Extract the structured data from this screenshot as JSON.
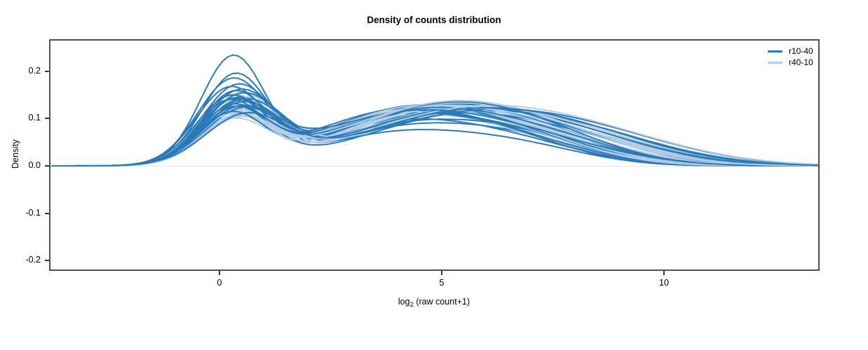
{
  "chart": {
    "title": "Density of counts distribution",
    "ylabel": "Density",
    "xlabel_prefix": "log",
    "xlabel_sub": "2",
    "xlabel_suffix": " (raw count+1)",
    "x_ticks": [
      {
        "value": 0,
        "label": "0"
      },
      {
        "value": 5,
        "label": "5"
      },
      {
        "value": 10,
        "label": "10"
      }
    ],
    "y_ticks": [
      {
        "value": 0.2,
        "label": "0.2"
      },
      {
        "value": 0.1,
        "label": "0.1"
      },
      {
        "value": 0.0,
        "label": "0.0"
      },
      {
        "value": -0.1,
        "label": "-0.1"
      },
      {
        "value": -0.2,
        "label": "-0.2"
      }
    ],
    "legend": [
      {
        "label": "r10-40",
        "color": "#2b7ab8"
      },
      {
        "label": "r40-10",
        "color": "#b3cde7"
      }
    ]
  },
  "chart_data": {
    "type": "line",
    "subtype": "overlaid-density-curves",
    "title": "Density of counts distribution",
    "xlabel": "log2 (raw count+1)",
    "ylabel": "Density",
    "xlim": [
      -3.8,
      13.47
    ],
    "ylim": [
      -0.219,
      0.265
    ],
    "x_tick_values": [
      0,
      5,
      10
    ],
    "y_tick_values": [
      -0.2,
      -0.1,
      0.0,
      0.1,
      0.2
    ],
    "grid": false,
    "zero_line": true,
    "zero_line_color": "#e7e7e7",
    "legend_position": "top-right-inside",
    "line_width": 2,
    "curve_model": "each curve = sum of 3 gaussian bumps; params per curve = [a1,m1,s1,a2,m2,s2,a3,m3,s3] giving density(x) = sum ai*exp(-0.5*((x-mi)/si)^2); first bump = sharp low-count peak near x=0.3, second = broad mid hump near x=4-5, third = right shoulder/tail near x=7-8",
    "series": [
      {
        "name": "r10-40",
        "color": "#2b7ab8",
        "n_curves": 22,
        "peak_range": [
          0.1,
          0.235
        ],
        "curves": [
          [
            0.225,
            0.3,
            0.72,
            0.07,
            4.1,
            1.9,
            0.03,
            6.9,
            1.5
          ],
          [
            0.185,
            0.35,
            0.75,
            0.08,
            4.3,
            2.0,
            0.035,
            7.0,
            1.6
          ],
          [
            0.172,
            0.28,
            0.78,
            0.085,
            3.9,
            1.9,
            0.04,
            6.6,
            1.7
          ],
          [
            0.16,
            0.4,
            0.8,
            0.09,
            4.5,
            2.1,
            0.035,
            7.4,
            1.6
          ],
          [
            0.152,
            0.22,
            0.76,
            0.095,
            4.0,
            2.0,
            0.045,
            6.8,
            1.8
          ],
          [
            0.148,
            0.45,
            0.82,
            0.1,
            4.6,
            2.1,
            0.04,
            7.2,
            1.7
          ],
          [
            0.143,
            0.32,
            0.74,
            0.105,
            4.2,
            2.0,
            0.038,
            7.6,
            1.8
          ],
          [
            0.14,
            0.5,
            0.85,
            0.098,
            4.8,
            2.2,
            0.042,
            7.8,
            1.9
          ],
          [
            0.137,
            0.25,
            0.78,
            0.11,
            4.4,
            2.0,
            0.036,
            7.1,
            1.6
          ],
          [
            0.134,
            0.38,
            0.8,
            0.102,
            5.0,
            2.2,
            0.048,
            7.9,
            2.0
          ],
          [
            0.13,
            0.55,
            0.88,
            0.095,
            5.2,
            2.3,
            0.05,
            8.2,
            2.0
          ],
          [
            0.128,
            0.3,
            0.75,
            0.108,
            4.1,
            1.9,
            0.034,
            6.7,
            1.5
          ],
          [
            0.126,
            0.42,
            0.82,
            0.112,
            4.7,
            2.1,
            0.04,
            7.3,
            1.7
          ],
          [
            0.123,
            0.2,
            0.72,
            0.104,
            3.8,
            1.9,
            0.046,
            6.5,
            1.8
          ],
          [
            0.12,
            0.48,
            0.84,
            0.118,
            4.9,
            2.2,
            0.036,
            7.7,
            1.8
          ],
          [
            0.118,
            0.35,
            0.78,
            0.096,
            5.4,
            2.3,
            0.052,
            8.4,
            2.1
          ],
          [
            0.115,
            0.28,
            0.76,
            0.12,
            4.3,
            2.0,
            0.032,
            7.0,
            1.6
          ],
          [
            0.112,
            0.52,
            0.86,
            0.106,
            5.1,
            2.2,
            0.044,
            8.0,
            1.9
          ],
          [
            0.11,
            0.33,
            0.77,
            0.114,
            4.5,
            2.1,
            0.038,
            7.5,
            1.7
          ],
          [
            0.107,
            0.44,
            0.83,
            0.099,
            4.0,
            2.0,
            0.05,
            6.9,
            1.9
          ],
          [
            0.104,
            0.26,
            0.74,
            0.116,
            4.8,
            2.1,
            0.042,
            7.2,
            1.7
          ],
          [
            0.1,
            0.58,
            0.9,
            0.101,
            5.3,
            2.3,
            0.046,
            8.1,
            2.0
          ]
        ]
      },
      {
        "name": "r40-10",
        "color": "#b3cde7",
        "n_curves": 22,
        "peak_range": [
          0.1,
          0.16
        ],
        "curves": [
          [
            0.145,
            0.32,
            0.78,
            0.095,
            4.2,
            2.0,
            0.038,
            7.0,
            1.7
          ],
          [
            0.14,
            0.45,
            0.82,
            0.1,
            4.6,
            2.1,
            0.042,
            7.4,
            1.8
          ],
          [
            0.136,
            0.28,
            0.76,
            0.105,
            4.0,
            1.9,
            0.036,
            6.8,
            1.6
          ],
          [
            0.133,
            0.5,
            0.84,
            0.098,
            4.9,
            2.2,
            0.046,
            7.8,
            1.9
          ],
          [
            0.13,
            0.35,
            0.79,
            0.11,
            4.4,
            2.0,
            0.04,
            7.1,
            1.7
          ],
          [
            0.127,
            0.22,
            0.74,
            0.102,
            3.9,
            1.9,
            0.044,
            6.6,
            1.8
          ],
          [
            0.124,
            0.48,
            0.83,
            0.112,
            4.7,
            2.1,
            0.038,
            7.6,
            1.8
          ],
          [
            0.121,
            0.3,
            0.77,
            0.106,
            5.1,
            2.2,
            0.048,
            8.0,
            2.0
          ],
          [
            0.118,
            0.42,
            0.81,
            0.115,
            4.3,
            2.0,
            0.034,
            7.2,
            1.6
          ],
          [
            0.115,
            0.26,
            0.75,
            0.1,
            4.8,
            2.1,
            0.05,
            7.9,
            2.0
          ],
          [
            0.112,
            0.55,
            0.87,
            0.108,
            5.3,
            2.3,
            0.042,
            8.3,
            2.1
          ],
          [
            0.11,
            0.38,
            0.8,
            0.118,
            4.5,
            2.0,
            0.036,
            7.3,
            1.7
          ],
          [
            0.108,
            0.2,
            0.73,
            0.103,
            4.1,
            1.9,
            0.046,
            6.7,
            1.8
          ],
          [
            0.106,
            0.46,
            0.82,
            0.111,
            5.0,
            2.2,
            0.04,
            7.7,
            1.9
          ],
          [
            0.104,
            0.33,
            0.78,
            0.097,
            4.2,
            2.0,
            0.052,
            7.0,
            2.0
          ],
          [
            0.102,
            0.52,
            0.85,
            0.109,
            5.2,
            2.2,
            0.044,
            8.2,
            2.0
          ],
          [
            0.1,
            0.29,
            0.76,
            0.113,
            4.4,
            2.0,
            0.038,
            7.1,
            1.7
          ],
          [
            0.098,
            0.4,
            0.8,
            0.105,
            4.7,
            2.1,
            0.048,
            7.5,
            1.9
          ],
          [
            0.096,
            0.24,
            0.74,
            0.117,
            4.3,
            2.0,
            0.036,
            6.9,
            1.6
          ],
          [
            0.094,
            0.44,
            0.81,
            0.107,
            5.4,
            2.3,
            0.05,
            8.5,
            2.1
          ],
          [
            0.092,
            0.36,
            0.79,
            0.114,
            4.6,
            2.1,
            0.04,
            7.4,
            1.8
          ],
          [
            0.09,
            0.31,
            0.77,
            0.119,
            4.9,
            2.1,
            0.044,
            7.6,
            1.9
          ]
        ]
      }
    ]
  }
}
